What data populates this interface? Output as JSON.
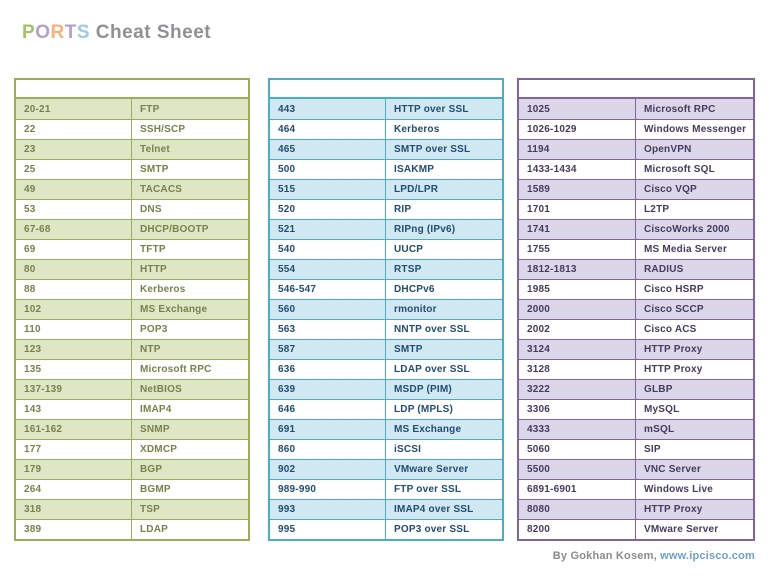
{
  "page_title": {
    "colored_letters": [
      {
        "char": "P",
        "color": "#a3c169"
      },
      {
        "char": "O",
        "color": "#b1a1c9"
      },
      {
        "char": "R",
        "color": "#f9b175"
      },
      {
        "char": "T",
        "color": "#afa3cd"
      },
      {
        "char": "S",
        "color": "#9bcbe0"
      }
    ],
    "rest": " Cheat Sheet",
    "rest_color": "#8f9194"
  },
  "tables": [
    {
      "id": "well-known-ports",
      "colors": {
        "border": "#9aae58",
        "fill": "#dde7c6",
        "text": "#77824a"
      },
      "rows": [
        {
          "port": "20-21",
          "service": "FTP"
        },
        {
          "port": "22",
          "service": "SSH/SCP"
        },
        {
          "port": "23",
          "service": "Telnet"
        },
        {
          "port": "25",
          "service": "SMTP"
        },
        {
          "port": "49",
          "service": "TACACS"
        },
        {
          "port": "53",
          "service": "DNS"
        },
        {
          "port": "67-68",
          "service": "DHCP/BOOTP"
        },
        {
          "port": "69",
          "service": "TFTP"
        },
        {
          "port": "80",
          "service": "HTTP"
        },
        {
          "port": "88",
          "service": "Kerberos"
        },
        {
          "port": "102",
          "service": "MS Exchange"
        },
        {
          "port": "110",
          "service": "POP3"
        },
        {
          "port": "123",
          "service": "NTP"
        },
        {
          "port": "135",
          "service": "Microsoft RPC"
        },
        {
          "port": "137-139",
          "service": "NetBIOS"
        },
        {
          "port": "143",
          "service": "IMAP4"
        },
        {
          "port": "161-162",
          "service": "SNMP"
        },
        {
          "port": "177",
          "service": "XDMCP"
        },
        {
          "port": "179",
          "service": "BGP"
        },
        {
          "port": "264",
          "service": "BGMP"
        },
        {
          "port": "318",
          "service": "TSP"
        },
        {
          "port": "389",
          "service": "LDAP"
        }
      ]
    },
    {
      "id": "mid-range-ports",
      "colors": {
        "border": "#4bacc6",
        "fill": "#cfe8f2",
        "text": "#214d74"
      },
      "rows": [
        {
          "port": "443",
          "service": "HTTP over SSL"
        },
        {
          "port": "464",
          "service": "Kerberos"
        },
        {
          "port": "465",
          "service": "SMTP over SSL"
        },
        {
          "port": "500",
          "service": "ISAKMP"
        },
        {
          "port": "515",
          "service": "LPD/LPR"
        },
        {
          "port": "520",
          "service": "RIP"
        },
        {
          "port": "521",
          "service": "RIPng (IPv6)"
        },
        {
          "port": "540",
          "service": "UUCP"
        },
        {
          "port": "554",
          "service": "RTSP"
        },
        {
          "port": "546-547",
          "service": "DHCPv6"
        },
        {
          "port": "560",
          "service": "rmonitor"
        },
        {
          "port": "563",
          "service": "NNTP over SSL"
        },
        {
          "port": "587",
          "service": "SMTP"
        },
        {
          "port": "636",
          "service": "LDAP over SSL"
        },
        {
          "port": "639",
          "service": "MSDP (PIM)"
        },
        {
          "port": "646",
          "service": "LDP (MPLS)"
        },
        {
          "port": "691",
          "service": "MS Exchange"
        },
        {
          "port": "860",
          "service": "iSCSI"
        },
        {
          "port": "902",
          "service": "VMware Server"
        },
        {
          "port": "989-990",
          "service": "FTP over SSL"
        },
        {
          "port": "993",
          "service": "IMAP4 over SSL"
        },
        {
          "port": "995",
          "service": "POP3 over SSL"
        }
      ]
    },
    {
      "id": "high-range-ports",
      "colors": {
        "border": "#8064a2",
        "fill": "#dcd6e9",
        "text": "#463a5e"
      },
      "rows": [
        {
          "port": "1025",
          "service": "Microsoft RPC"
        },
        {
          "port": "1026-1029",
          "service": "Windows Messenger"
        },
        {
          "port": "1194",
          "service": "OpenVPN"
        },
        {
          "port": "1433-1434",
          "service": "Microsoft SQL"
        },
        {
          "port": "1589",
          "service": "Cisco VQP"
        },
        {
          "port": "1701",
          "service": "L2TP"
        },
        {
          "port": "1741",
          "service": "CiscoWorks 2000"
        },
        {
          "port": "1755",
          "service": "MS Media Server"
        },
        {
          "port": "1812-1813",
          "service": "RADIUS"
        },
        {
          "port": "1985",
          "service": "Cisco HSRP"
        },
        {
          "port": "2000",
          "service": "Cisco SCCP"
        },
        {
          "port": "2002",
          "service": "Cisco ACS"
        },
        {
          "port": "3124",
          "service": "HTTP Proxy"
        },
        {
          "port": "3128",
          "service": "HTTP Proxy"
        },
        {
          "port": "3222",
          "service": "GLBP"
        },
        {
          "port": "3306",
          "service": "MySQL"
        },
        {
          "port": "4333",
          "service": "mSQL"
        },
        {
          "port": "5060",
          "service": "SIP"
        },
        {
          "port": "5500",
          "service": "VNC Server"
        },
        {
          "port": "6891-6901",
          "service": "Windows Live"
        },
        {
          "port": "8080",
          "service": "HTTP Proxy"
        },
        {
          "port": "8200",
          "service": "VMware Server"
        }
      ]
    }
  ],
  "footer": {
    "author_text": "By Gokhan Kosem, ",
    "link_text": "www.ipcisco.com",
    "author_color": "#8c8c8c",
    "link_color": "#6d9fd4"
  }
}
